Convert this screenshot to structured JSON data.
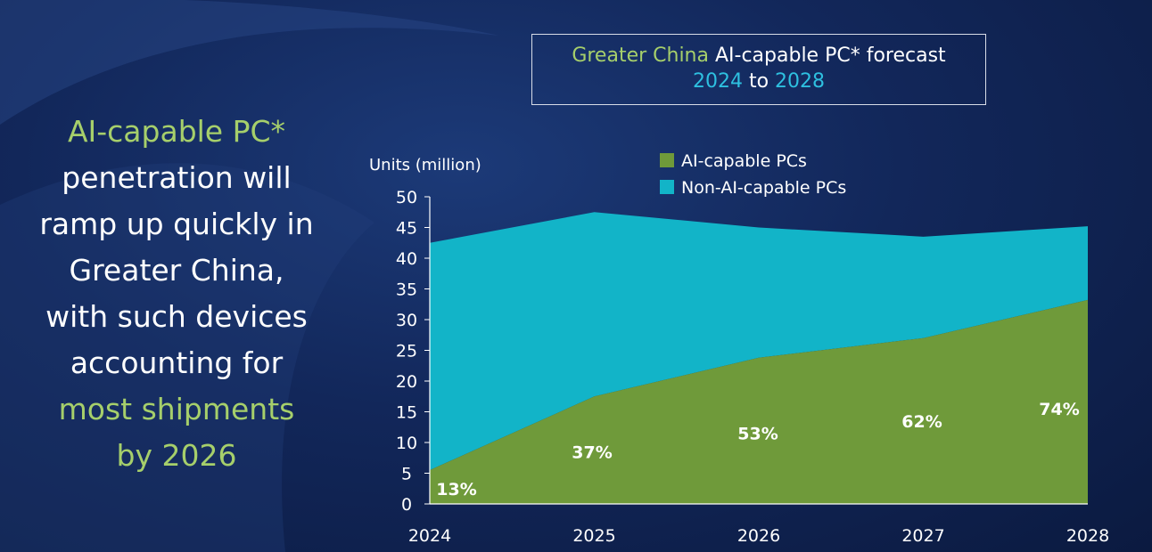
{
  "headline": {
    "line1": "AI-capable PC*",
    "line2": "penetration will",
    "line3": "ramp up quickly in",
    "line4": "Greater China,",
    "line5": "with such devices",
    "line6": "accounting for",
    "line7": "most shipments",
    "line8": "by 2026"
  },
  "title_box": {
    "region": "Greater China",
    "subject": "AI-capable PC* forecast",
    "year_start": "2024",
    "to": "to",
    "year_end": "2028"
  },
  "colors": {
    "ai": "#6f9a3a",
    "non_ai": "#12b4c8",
    "green_text": "#a6cf6b",
    "cyan_text": "#2ec0e0"
  },
  "chart_data": {
    "type": "area",
    "ylabel": "Units (million)",
    "categories": [
      "2024",
      "2025",
      "2026",
      "2027",
      "2028"
    ],
    "ylim": [
      0,
      50
    ],
    "yticks": [
      0,
      5,
      10,
      15,
      20,
      25,
      30,
      35,
      40,
      45,
      50
    ],
    "series": [
      {
        "name": "AI-capable PCs",
        "values": [
          5.5,
          17.5,
          23.8,
          27.0,
          33.2
        ]
      },
      {
        "name": "Non-AI-capable  PCs",
        "values": [
          37.0,
          30.0,
          21.2,
          16.5,
          12.0
        ]
      }
    ],
    "totals": [
      42.5,
      47.5,
      45.0,
      43.5,
      45.2
    ],
    "data_labels": [
      "13%",
      "37%",
      "53%",
      "62%",
      "74%"
    ],
    "data_label_positions": [
      2.5,
      8.5,
      11.5,
      13.5,
      15.5
    ]
  }
}
